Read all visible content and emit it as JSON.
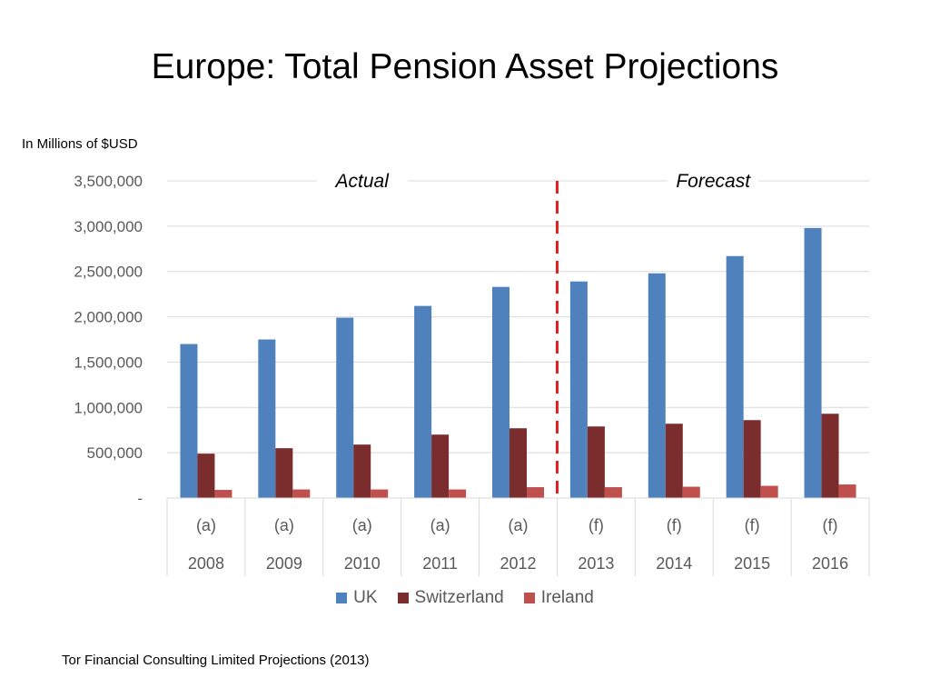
{
  "slide": {
    "title": "Europe: Total Pension Asset Projections",
    "units_label": "In Millions of $USD",
    "source_note": "Tor Financial Consulting Limited Projections (2013)"
  },
  "chart_data": {
    "type": "bar",
    "title": "",
    "xlabel": "",
    "ylabel": "In Millions of $USD",
    "ylim": [
      0,
      3500000
    ],
    "yticks": [
      0,
      500000,
      1000000,
      1500000,
      2000000,
      2500000,
      3000000,
      3500000
    ],
    "ytick_labels": [
      "-",
      "500,000",
      "1,000,000",
      "1,500,000",
      "2,000,000",
      "2,500,000",
      "3,000,000",
      "3,500,000"
    ],
    "categories": [
      "2008",
      "2009",
      "2010",
      "2011",
      "2012",
      "2013",
      "2014",
      "2015",
      "2016"
    ],
    "category_flags": [
      "(a)",
      "(a)",
      "(a)",
      "(a)",
      "(a)",
      "(f)",
      "(f)",
      "(f)",
      "(f)"
    ],
    "series": [
      {
        "name": "UK",
        "color": "#4F81BD",
        "values": [
          1700000,
          1750000,
          1990000,
          2120000,
          2330000,
          2390000,
          2480000,
          2670000,
          2980000
        ]
      },
      {
        "name": "Switzerland",
        "color": "#7B2C2C",
        "values": [
          490000,
          550000,
          590000,
          700000,
          770000,
          790000,
          820000,
          860000,
          930000
        ]
      },
      {
        "name": "Ireland",
        "color": "#C0504D",
        "values": [
          90000,
          95000,
          95000,
          95000,
          120000,
          120000,
          125000,
          135000,
          150000
        ]
      }
    ],
    "grid": true,
    "legend_position": "bottom",
    "regions": [
      {
        "label": "Actual",
        "categories": [
          "2008",
          "2009",
          "2010",
          "2011",
          "2012"
        ]
      },
      {
        "label": "Forecast",
        "categories": [
          "2013",
          "2014",
          "2015",
          "2016"
        ]
      }
    ],
    "divider": {
      "after_category": "2012",
      "color": "#E02020",
      "style": "dashed"
    }
  }
}
